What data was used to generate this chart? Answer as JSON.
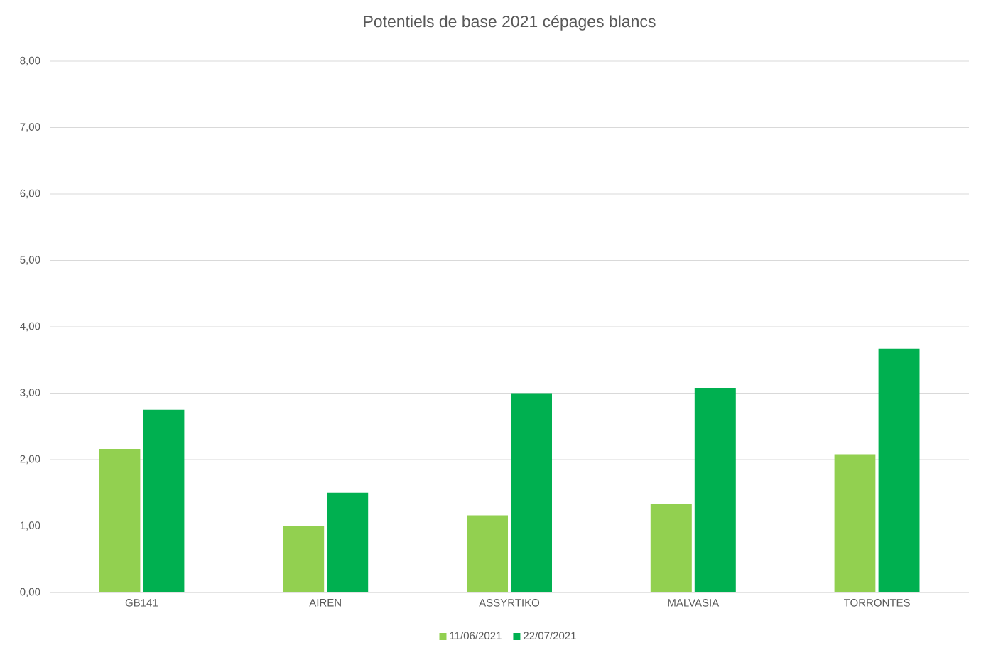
{
  "chart_data": {
    "type": "bar",
    "title": "Potentiels de base 2021 cépages blancs",
    "categories": [
      "GB141",
      "AIREN",
      "ASSYRTIKO",
      "MALVASIA",
      "TORRONTES"
    ],
    "series": [
      {
        "name": "11/06/2021",
        "color": "#92d050",
        "values": [
          2.16,
          1.0,
          1.16,
          1.33,
          2.08
        ]
      },
      {
        "name": "22/07/2021",
        "color": "#00b050",
        "values": [
          2.75,
          1.5,
          3.0,
          3.08,
          3.67
        ]
      }
    ],
    "ylim": [
      0,
      8
    ],
    "yticks": [
      {
        "value": 0,
        "label": "0,00"
      },
      {
        "value": 1,
        "label": "1,00"
      },
      {
        "value": 2,
        "label": "2,00"
      },
      {
        "value": 3,
        "label": "3,00"
      },
      {
        "value": 4,
        "label": "4,00"
      },
      {
        "value": 5,
        "label": "5,00"
      },
      {
        "value": 6,
        "label": "6,00"
      },
      {
        "value": 7,
        "label": "7,00"
      },
      {
        "value": 8,
        "label": "8,00"
      }
    ],
    "grid": "y",
    "legend": "bottom"
  }
}
